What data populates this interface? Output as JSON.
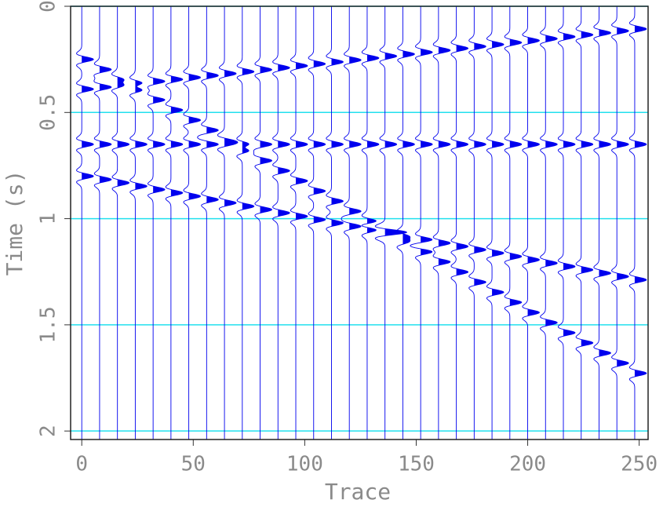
{
  "chart_data": {
    "type": "wiggle",
    "x_label": "Trace",
    "y_label": "Time (s)",
    "xlim": [
      -5,
      254
    ],
    "ylim": [
      0,
      2.04
    ],
    "xticks": [
      0,
      50,
      100,
      150,
      200,
      250
    ],
    "yticks": [
      0,
      0.5,
      1,
      1.5,
      2
    ],
    "grid": true,
    "grid_color": "#22e0ee",
    "color": "#0000ee",
    "trace_positions": [
      0,
      8,
      16,
      24,
      32,
      40,
      48,
      56,
      64,
      72,
      80,
      88,
      96,
      104,
      112,
      120,
      128,
      136,
      144,
      152,
      160,
      168,
      176,
      184,
      192,
      200,
      208,
      216,
      224,
      232,
      240,
      248
    ],
    "events": [
      {
        "x": [
          0,
          254
        ],
        "t": [
          0.39,
          0.1
        ]
      },
      {
        "x": [
          0,
          250
        ],
        "t": [
          0.25,
          1.74
        ]
      },
      {
        "x": [
          0,
          254
        ],
        "t": [
          0.65,
          0.65
        ]
      },
      {
        "x": [
          0,
          254
        ],
        "t": [
          0.8,
          1.3
        ]
      }
    ]
  }
}
